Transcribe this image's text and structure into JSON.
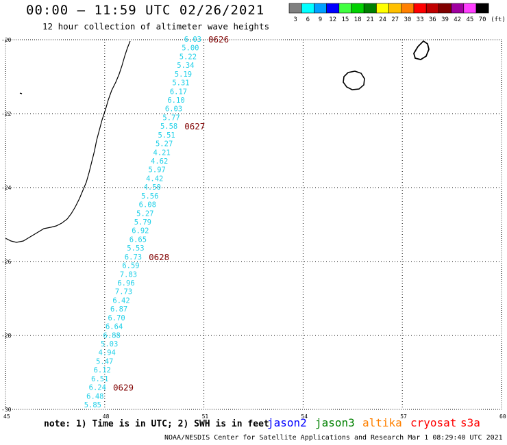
{
  "header": {
    "title": "00:00 – 11:59 UTC 02/26/2021",
    "subtitle": "12 hour collection of altimeter wave heights"
  },
  "legend": {
    "unit": "(ft)",
    "bins": [
      {
        "label": "3",
        "color": "#808080"
      },
      {
        "label": "6",
        "color": "#00ffff"
      },
      {
        "label": "9",
        "color": "#00a0ff"
      },
      {
        "label": "12",
        "color": "#0000ff"
      },
      {
        "label": "15",
        "color": "#40ff40"
      },
      {
        "label": "18",
        "color": "#00d000"
      },
      {
        "label": "21",
        "color": "#008000"
      },
      {
        "label": "24",
        "color": "#ffff00"
      },
      {
        "label": "27",
        "color": "#ffc000"
      },
      {
        "label": "30",
        "color": "#ff8000"
      },
      {
        "label": "33",
        "color": "#ff0000"
      },
      {
        "label": "36",
        "color": "#c00000"
      },
      {
        "label": "39",
        "color": "#800000"
      },
      {
        "label": "42",
        "color": "#a000a0"
      },
      {
        "label": "45",
        "color": "#ff40ff"
      },
      {
        "label": "70",
        "color": "#000000"
      }
    ]
  },
  "map": {
    "lon_range": [
      45,
      60
    ],
    "lat_range": [
      -30,
      -20
    ],
    "lon_ticks": [
      45,
      48,
      51,
      54,
      57,
      60
    ],
    "lat_ticks": [
      -20,
      -22,
      -24,
      -26,
      -28,
      -30
    ],
    "lon_labels": [
      "45",
      "48",
      "51",
      "54",
      "57",
      "60"
    ],
    "lat_labels": [
      "-20",
      "-22",
      "-24",
      "-26",
      "-28",
      "-30"
    ],
    "swh_color": "#1fd0e8",
    "time_color": "#800000",
    "swh_values": [
      "6.03",
      "5.00",
      "5.22",
      "5.34",
      "5.19",
      "5.31",
      "6.17",
      "6.10",
      "6.03",
      "5.77",
      "5.58",
      "5.51",
      "5.27",
      "4.21",
      "4.62",
      "5.97",
      "4.42",
      "4.50",
      "5.56",
      "6.08",
      "5.27",
      "5.79",
      "6.92",
      "6.65",
      "5.53",
      "6.73",
      "6.59",
      "7.83",
      "6.96",
      "7.73",
      "6.42",
      "6.87",
      "6.70",
      "6.64",
      "6.88",
      "5.03",
      "4.94",
      "5.47",
      "6.12",
      "6.51",
      "6.24",
      "6.48",
      "5.85"
    ],
    "time_markers": [
      {
        "label": "0626",
        "index": 0
      },
      {
        "label": "0627",
        "index": 10
      },
      {
        "label": "0628",
        "index": 25
      },
      {
        "label": "0629",
        "index": 40
      }
    ]
  },
  "footer": {
    "note": "note: 1) Time is in UTC; 2) SWH is in feet",
    "satellites": [
      {
        "label": "jason2",
        "color": "#0000ff"
      },
      {
        "label": "jason3",
        "color": "#008000"
      },
      {
        "label": "altika",
        "color": "#ff8000"
      },
      {
        "label": "cryosat",
        "color": "#ff0000"
      },
      {
        "label": "s3a",
        "color": "#ff0000"
      }
    ],
    "credit": "NOAA/NESDIS Center for Satellite Applications and Research   Mar  1 08:29:40 UTC 2021"
  }
}
